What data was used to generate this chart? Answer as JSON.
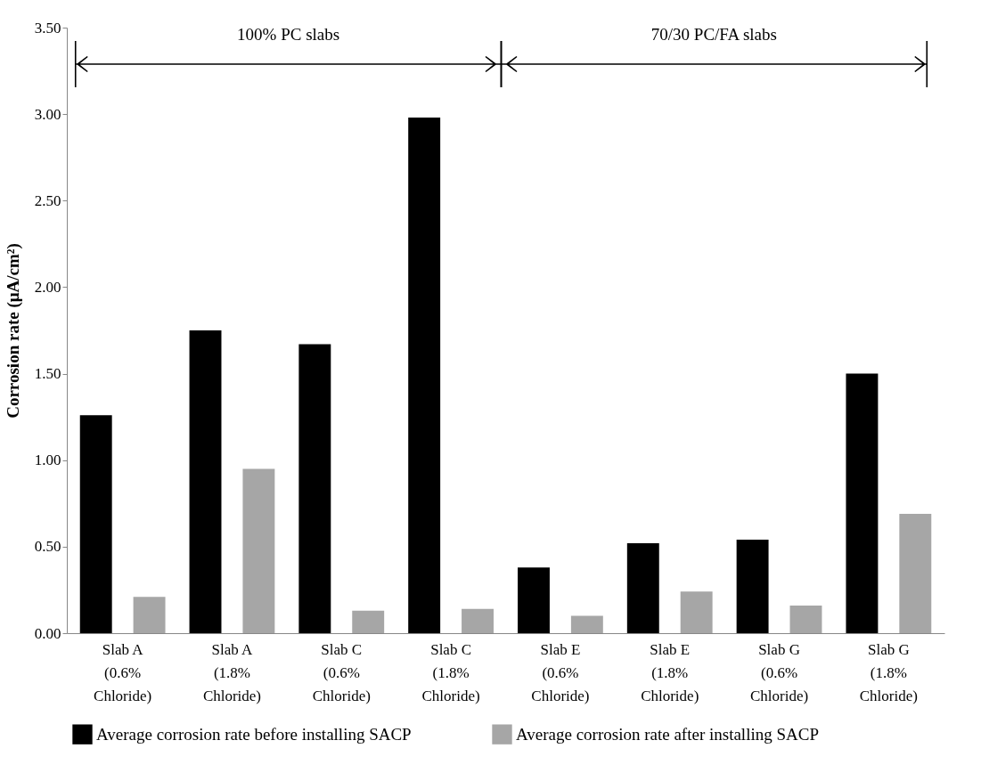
{
  "chart_data": {
    "type": "bar",
    "ylabel": "Corrosion rate (μA/cm²)",
    "categories": [
      "Slab A\n(0.6%\nChloride)",
      "Slab A\n(1.8%\nChloride)",
      "Slab C\n(0.6%\nChloride)",
      "Slab C\n(1.8%\nChloride)",
      "Slab E\n(0.6%\nChloride)",
      "Slab E\n(1.8%\nChloride)",
      "Slab G\n(0.6%\nChloride)",
      "Slab G\n(1.8%\nChloride)"
    ],
    "series": [
      {
        "name": "Average corrosion rate before installing SACP",
        "color": "#000000",
        "values": [
          1.26,
          1.75,
          1.67,
          2.98,
          0.38,
          0.52,
          0.54,
          1.5
        ]
      },
      {
        "name": "Average corrosion rate after installing SACP",
        "color": "#a6a6a6",
        "values": [
          0.21,
          0.95,
          0.13,
          0.14,
          0.1,
          0.24,
          0.16,
          0.69
        ]
      }
    ],
    "ylim": [
      0,
      3.5
    ],
    "yticks": [
      {
        "value": 0,
        "label": "0.00"
      },
      {
        "value": 0.5,
        "label": "0.50"
      },
      {
        "value": 1,
        "label": "1.00"
      },
      {
        "value": 1.5,
        "label": "1.50"
      },
      {
        "value": 2,
        "label": "2.00"
      },
      {
        "value": 2.5,
        "label": "2.50"
      },
      {
        "value": 3,
        "label": "3.00"
      },
      {
        "value": 3.5,
        "label": "3.50"
      }
    ],
    "grid": false,
    "legend": "bottom",
    "annotations": [
      "100% PC slabs",
      "70/30 PC/FA slabs"
    ]
  }
}
